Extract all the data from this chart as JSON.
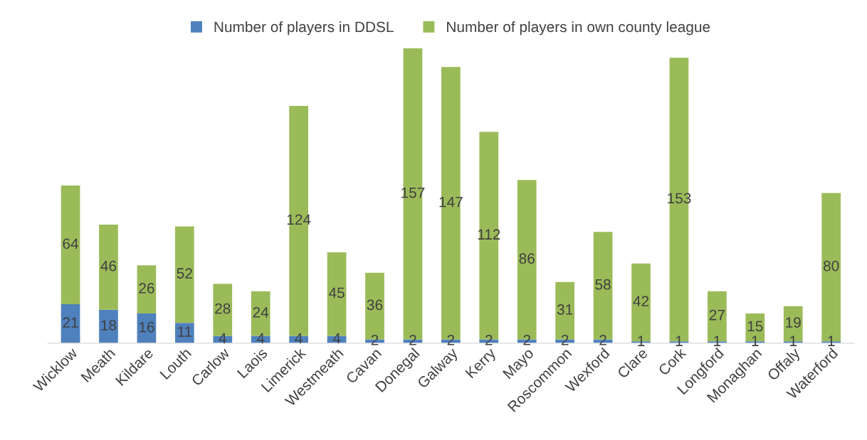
{
  "chart_data": {
    "type": "bar",
    "stacked": true,
    "data_labels": true,
    "legend": "top",
    "grid": false,
    "categories": [
      "Wicklow",
      "Meath",
      "Kildare",
      "Louth",
      "Carlow",
      "Laois",
      "Limerick",
      "Westmeath",
      "Cavan",
      "Donegal",
      "Galway",
      "Kerry",
      "Mayo",
      "Roscommon",
      "Wexford",
      "Clare",
      "Cork",
      "Longford",
      "Monaghan",
      "Offaly",
      "Waterford"
    ],
    "series": [
      {
        "name": "Number of players in DDSL",
        "color": "#4f81bd",
        "values": [
          21,
          18,
          16,
          11,
          4,
          4,
          4,
          4,
          2,
          2,
          2,
          2,
          2,
          2,
          2,
          1,
          1,
          1,
          1,
          1,
          1
        ]
      },
      {
        "name": "Number of players in own county league",
        "color": "#9bbb59",
        "values": [
          64,
          46,
          26,
          52,
          28,
          24,
          124,
          45,
          36,
          157,
          147,
          112,
          86,
          31,
          58,
          42,
          153,
          27,
          15,
          19,
          80
        ]
      }
    ]
  }
}
